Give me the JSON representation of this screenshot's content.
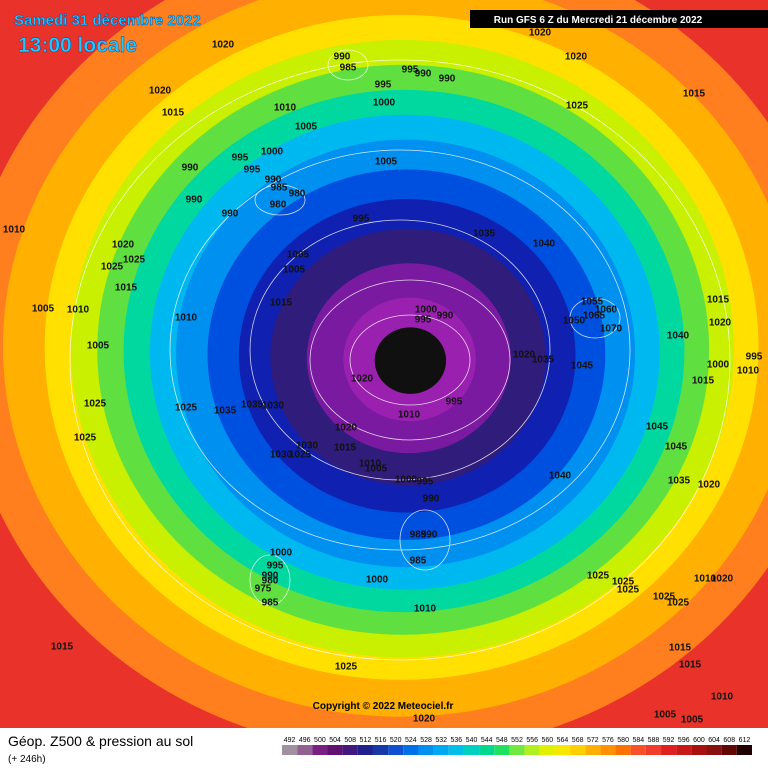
{
  "header": {
    "date": "Samedi 31 décembre 2022",
    "time": "13:00 locale",
    "run": "Run GFS 6 Z du Mercredi 21 décembre 2022"
  },
  "footer": {
    "title": "Géop. Z500 & pression au sol",
    "lead": "(+ 246h)",
    "copyright": "Copyright © 2022 Meteociel.fr"
  },
  "colorbar": {
    "labels": [
      492,
      496,
      500,
      504,
      508,
      512,
      516,
      520,
      524,
      528,
      532,
      536,
      540,
      544,
      548,
      552,
      556,
      560,
      564,
      568,
      572,
      576,
      580,
      584,
      588,
      592,
      596,
      600,
      604,
      608,
      612
    ],
    "colors": [
      "#a090a0",
      "#906090",
      "#7a2080",
      "#601070",
      "#401880",
      "#20208c",
      "#1838a8",
      "#1050d0",
      "#0070e8",
      "#0090f0",
      "#00a8f0",
      "#00c0e8",
      "#00d0c0",
      "#00d890",
      "#20e060",
      "#70e840",
      "#b0f020",
      "#e0f000",
      "#f8e800",
      "#ffd000",
      "#ffb000",
      "#ff9000",
      "#ff7000",
      "#f85028",
      "#f03c2a",
      "#e02020",
      "#c81818",
      "#a81010",
      "#881010",
      "#600808",
      "#200000"
    ]
  },
  "isobar_labels": [
    1020,
    990,
    985,
    995,
    990,
    990,
    995,
    1000,
    1010,
    1020,
    1015,
    1005,
    1000,
    995,
    995,
    990,
    990,
    985,
    980,
    980,
    990,
    990,
    1005,
    995,
    1035,
    1040,
    1020,
    1020,
    1025,
    1015,
    1010,
    1020,
    1025,
    1025,
    1005,
    1005,
    1015,
    1005,
    1010,
    1010,
    1015,
    1000,
    995,
    990,
    990,
    1055,
    1060,
    1050,
    1065,
    1070,
    1040,
    1015,
    1020,
    995,
    1010,
    1000,
    1035,
    1020,
    1045,
    1005,
    1020,
    1015,
    1025,
    1025,
    1035,
    1035,
    1030,
    1010,
    995,
    1020,
    1025,
    1030,
    1030,
    1025,
    1015,
    1010,
    1005,
    1000,
    995,
    990,
    1045,
    1045,
    1040,
    1035,
    1020,
    985,
    990,
    985,
    1000,
    995,
    990,
    980,
    975,
    985,
    1000,
    1025,
    1025,
    1025,
    1025,
    1025,
    1010,
    1020,
    1010,
    1015,
    1015,
    1015,
    1025,
    1010,
    1005,
    1005,
    1020
  ]
}
